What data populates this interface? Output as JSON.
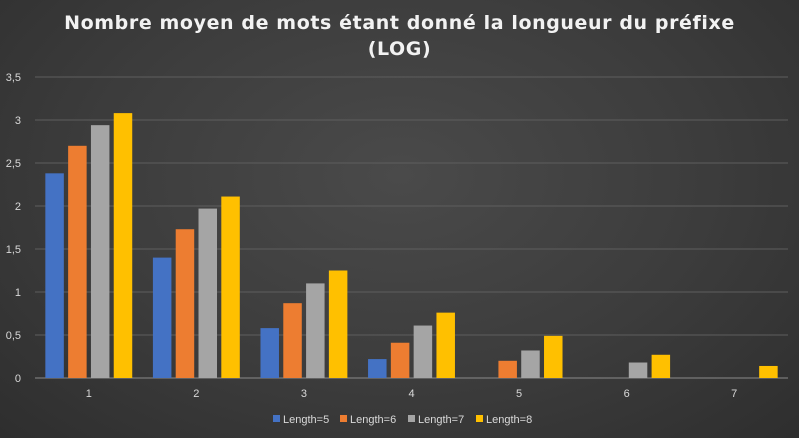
{
  "chart_data": {
    "type": "bar",
    "title_line1": "Nombre moyen de mots étant donné la longueur du préfixe",
    "title_line2": "(LOG)",
    "xlabel": "",
    "ylabel": "",
    "categories": [
      "1",
      "2",
      "3",
      "4",
      "5",
      "6",
      "7"
    ],
    "ylim": [
      0,
      3.5
    ],
    "yticks": [
      "0",
      "0,5",
      "1",
      "1,5",
      "2",
      "2,5",
      "3",
      "3,5"
    ],
    "grid": true,
    "legend_position": "bottom",
    "series": [
      {
        "name": "Length=5",
        "color": "#4472c4",
        "values": [
          2.38,
          1.4,
          0.58,
          0.22,
          null,
          null,
          null
        ]
      },
      {
        "name": "Length=6",
        "color": "#ed7d31",
        "values": [
          2.7,
          1.73,
          0.87,
          0.41,
          0.2,
          null,
          null
        ]
      },
      {
        "name": "Length=7",
        "color": "#a5a5a5",
        "values": [
          2.94,
          1.97,
          1.1,
          0.61,
          0.32,
          0.18,
          null
        ]
      },
      {
        "name": "Length=8",
        "color": "#ffc000",
        "values": [
          3.08,
          2.11,
          1.25,
          0.76,
          0.49,
          0.27,
          0.14
        ]
      }
    ]
  }
}
